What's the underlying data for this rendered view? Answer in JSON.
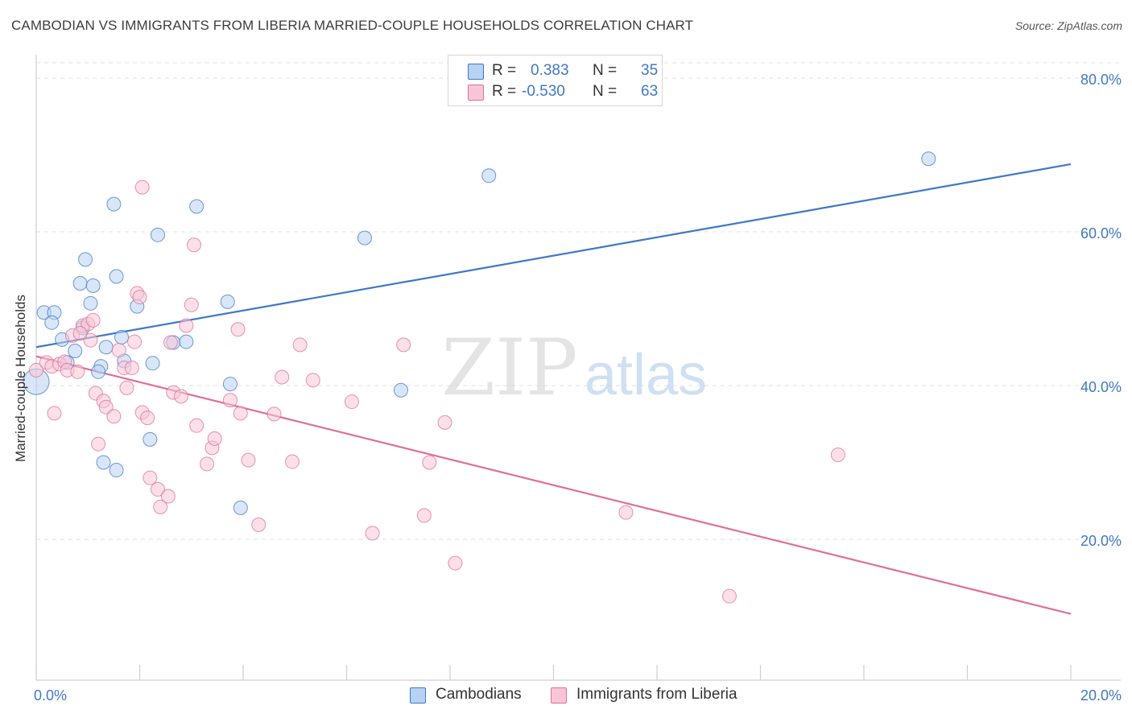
{
  "title": "CAMBODIAN VS IMMIGRANTS FROM LIBERIA MARRIED-COUPLE HOUSEHOLDS CORRELATION CHART",
  "source": "Source: ZipAtlas.com",
  "watermark": {
    "zip": "ZIP",
    "atlas": "atlas"
  },
  "colors": {
    "blue": "#3f78c7",
    "blue_fill": "#b8d2f3",
    "pink": "#e06e98",
    "pink_fill": "#f7c6d6",
    "grid": "#e2e2e2"
  },
  "legend": {
    "rows": [
      {
        "r_label": "R =",
        "r_value": "0.383",
        "n_label": "N =",
        "n_value": "35"
      },
      {
        "r_label": "R =",
        "r_value": "-0.530",
        "n_label": "N =",
        "n_value": "63"
      }
    ]
  },
  "bottom_legend": [
    "Cambodians",
    "Immigrants from Liberia"
  ],
  "chart_data": {
    "type": "scatter",
    "title": "CAMBODIAN VS IMMIGRANTS FROM LIBERIA MARRIED-COUPLE HOUSEHOLDS CORRELATION CHART",
    "xlabel": "",
    "ylabel": "Married-couple Households",
    "xlim": [
      0,
      20
    ],
    "ylim": [
      0,
      85
    ],
    "x_tick_labels": [
      {
        "value": 0,
        "label": "0.0%"
      },
      {
        "value": 20,
        "label": "20.0%"
      }
    ],
    "y_tick_labels": [
      {
        "value": 20,
        "label": "20.0%"
      },
      {
        "value": 40,
        "label": "40.0%"
      },
      {
        "value": 60,
        "label": "60.0%"
      },
      {
        "value": 80,
        "label": "80.0%"
      }
    ],
    "series": [
      {
        "name": "Cambodians",
        "color": "#3f78c7",
        "r": 0.383,
        "n": 35,
        "trend": {
          "x": [
            0,
            20
          ],
          "y": [
            45.0,
            68.8
          ]
        },
        "points": [
          [
            0.0,
            40.5
          ],
          [
            0.15,
            49.5
          ],
          [
            0.35,
            49.5
          ],
          [
            0.3,
            48.2
          ],
          [
            0.5,
            46.0
          ],
          [
            0.75,
            44.5
          ],
          [
            0.6,
            43.0
          ],
          [
            0.85,
            53.3
          ],
          [
            0.9,
            47.5
          ],
          [
            0.95,
            56.4
          ],
          [
            1.05,
            50.7
          ],
          [
            1.1,
            53.0
          ],
          [
            1.25,
            42.5
          ],
          [
            1.35,
            45.0
          ],
          [
            1.5,
            63.6
          ],
          [
            1.55,
            54.2
          ],
          [
            1.65,
            46.3
          ],
          [
            1.7,
            43.2
          ],
          [
            1.95,
            50.3
          ],
          [
            2.25,
            42.9
          ],
          [
            2.35,
            59.6
          ],
          [
            2.65,
            45.6
          ],
          [
            2.9,
            45.7
          ],
          [
            3.1,
            63.3
          ],
          [
            3.7,
            50.9
          ],
          [
            3.75,
            40.2
          ],
          [
            1.3,
            30.0
          ],
          [
            1.55,
            29.0
          ],
          [
            2.2,
            33.0
          ],
          [
            3.95,
            24.1
          ],
          [
            6.35,
            59.2
          ],
          [
            7.05,
            39.4
          ],
          [
            8.75,
            67.3
          ],
          [
            17.25,
            69.5
          ],
          [
            1.2,
            41.8
          ]
        ]
      },
      {
        "name": "Immigrants from Liberia",
        "color": "#e06e98",
        "r": -0.53,
        "n": 63,
        "trend": {
          "x": [
            0,
            20
          ],
          "y": [
            43.8,
            10.3
          ]
        },
        "points": [
          [
            0.0,
            42.0
          ],
          [
            0.2,
            43.0
          ],
          [
            0.3,
            42.5
          ],
          [
            0.45,
            42.8
          ],
          [
            0.55,
            43.1
          ],
          [
            0.6,
            42.0
          ],
          [
            0.7,
            46.5
          ],
          [
            0.8,
            41.8
          ],
          [
            0.9,
            47.8
          ],
          [
            1.0,
            48.0
          ],
          [
            1.05,
            45.9
          ],
          [
            1.1,
            48.5
          ],
          [
            1.15,
            39.0
          ],
          [
            1.3,
            38.0
          ],
          [
            1.35,
            37.2
          ],
          [
            1.5,
            36.0
          ],
          [
            1.6,
            44.6
          ],
          [
            1.7,
            42.3
          ],
          [
            1.75,
            39.7
          ],
          [
            1.85,
            42.3
          ],
          [
            1.9,
            45.7
          ],
          [
            1.95,
            52.0
          ],
          [
            2.0,
            51.5
          ],
          [
            2.05,
            36.5
          ],
          [
            2.15,
            35.8
          ],
          [
            2.2,
            28.0
          ],
          [
            2.35,
            26.5
          ],
          [
            2.4,
            24.2
          ],
          [
            2.55,
            25.6
          ],
          [
            2.6,
            45.6
          ],
          [
            2.65,
            39.1
          ],
          [
            2.8,
            38.6
          ],
          [
            2.9,
            47.8
          ],
          [
            3.0,
            50.5
          ],
          [
            3.05,
            58.3
          ],
          [
            3.1,
            34.8
          ],
          [
            3.3,
            29.8
          ],
          [
            3.4,
            31.9
          ],
          [
            3.45,
            33.1
          ],
          [
            3.75,
            38.1
          ],
          [
            3.9,
            47.3
          ],
          [
            3.95,
            36.4
          ],
          [
            4.1,
            30.3
          ],
          [
            4.3,
            21.9
          ],
          [
            4.6,
            36.3
          ],
          [
            4.75,
            41.1
          ],
          [
            4.95,
            30.1
          ],
          [
            5.1,
            45.3
          ],
          [
            5.35,
            40.7
          ],
          [
            6.1,
            37.9
          ],
          [
            6.5,
            20.8
          ],
          [
            7.1,
            45.3
          ],
          [
            7.5,
            23.1
          ],
          [
            7.6,
            30.0
          ],
          [
            7.9,
            35.2
          ],
          [
            8.1,
            16.9
          ],
          [
            11.4,
            23.5
          ],
          [
            13.4,
            12.6
          ],
          [
            15.5,
            31.0
          ],
          [
            2.05,
            65.8
          ],
          [
            0.35,
            36.4
          ],
          [
            1.2,
            32.4
          ],
          [
            0.85,
            46.8
          ]
        ]
      }
    ]
  }
}
